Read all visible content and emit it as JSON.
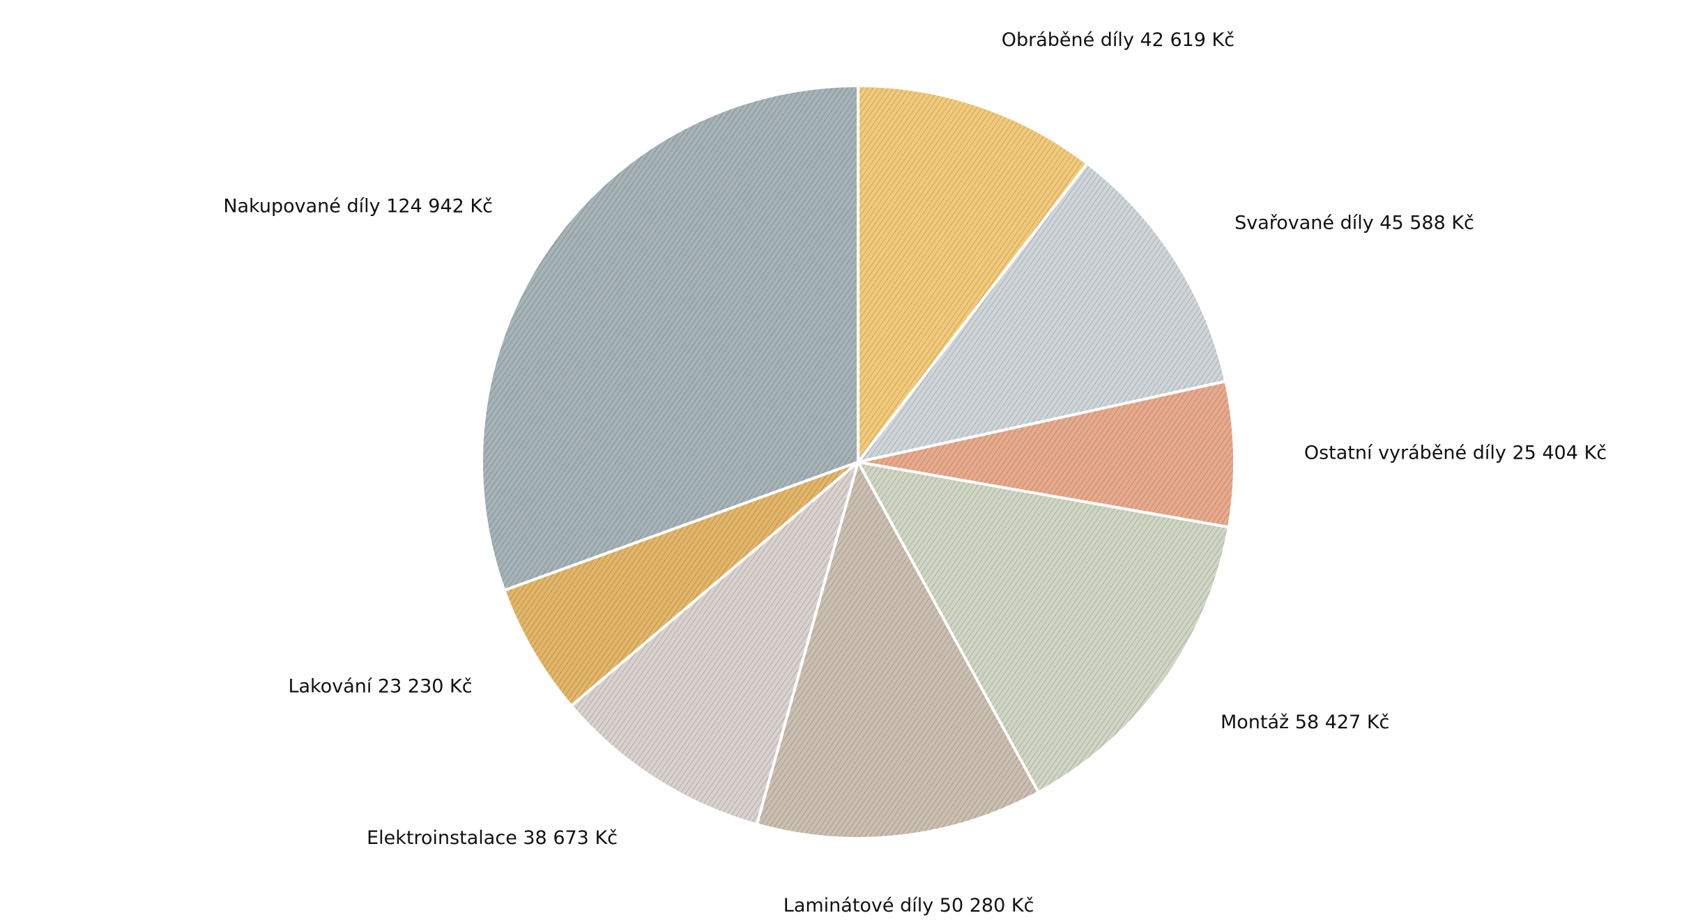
{
  "chart_data": {
    "type": "pie",
    "currency": "Kč",
    "slices": [
      {
        "label": "Obráběné díly",
        "value": 42619,
        "value_text": "42 619",
        "color": "#f3ca7a"
      },
      {
        "label": "Svařované díly",
        "value": 45588,
        "value_text": "45 588",
        "color": "#cfd6da"
      },
      {
        "label": "Ostatní vyráběné díly",
        "value": 25404,
        "value_text": "25 404",
        "color": "#e9aa8c"
      },
      {
        "label": "Montáž",
        "value": 58427,
        "value_text": "58 427",
        "color": "#d0d6c4"
      },
      {
        "label": "Laminátové díly",
        "value": 50280,
        "value_text": "50 280",
        "color": "#cbbfb1"
      },
      {
        "label": "Elektroinstalace",
        "value": 38673,
        "value_text": "38 673",
        "color": "#dad2cf"
      },
      {
        "label": "Lakování",
        "value": 23230,
        "value_text": "23 230",
        "color": "#e3b669"
      },
      {
        "label": "Nakupované díly",
        "value": 124942,
        "value_text": "124 942",
        "color": "#a6b3b8"
      }
    ],
    "legend": "none"
  }
}
